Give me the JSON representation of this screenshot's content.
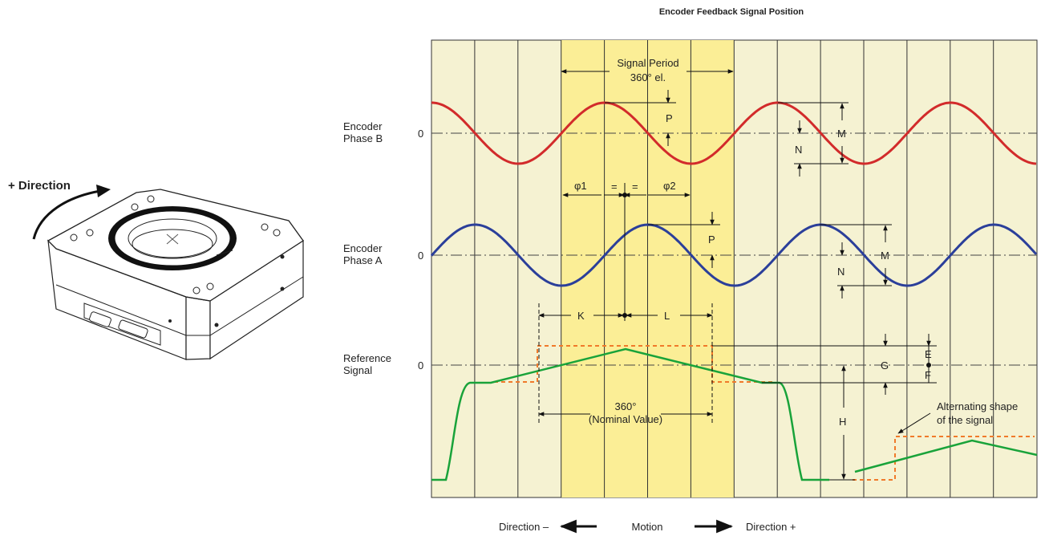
{
  "title": "Encoder Feedback Signal Position",
  "stage_illustration": {
    "direction_label": "+ Direction"
  },
  "rows": {
    "phase_b": {
      "label": [
        "Encoder",
        "Phase B"
      ],
      "zero": "0"
    },
    "phase_a": {
      "label": [
        "Encoder",
        "Phase A"
      ],
      "zero": "0"
    },
    "reference": {
      "label": [
        "Reference",
        "Signal"
      ],
      "zero": "0"
    }
  },
  "annotations": {
    "signal_period": [
      "Signal Period",
      "360° el."
    ],
    "phi1": "φ1",
    "phi2": "φ2",
    "equal": "=",
    "P": "P",
    "M": "M",
    "N": "N",
    "K": "K",
    "L": "L",
    "G": "G",
    "E": "E",
    "F": "F",
    "H": "H",
    "nominal": [
      "360°",
      "(Nominal Value)"
    ],
    "alternating": [
      "Alternating shape",
      "of the signal"
    ]
  },
  "footer": {
    "direction_minus": "Direction –",
    "motion": "Motion",
    "direction_plus": "Direction +"
  },
  "colors": {
    "phase_b": "#d22b2b",
    "phase_a": "#2b3f9a",
    "reference": "#19a33a",
    "dashed_alt": "#f07a2a",
    "band_light": "#f5f2d2",
    "band_highlight": "#fbee96"
  }
}
